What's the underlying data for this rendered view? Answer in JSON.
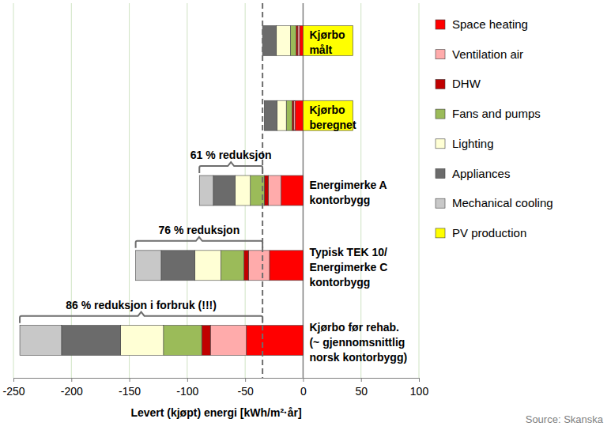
{
  "chart_data": {
    "type": "bar",
    "orientation": "horizontal",
    "stacked": true,
    "categories": [
      "Kjørbo\nmålt",
      "Kjørbo\nberegnet",
      "Energimerke A\nkontorbygg",
      "Typisk TEK 10/\nEnergimerke C\nkontorbygg",
      "Kjørbo før rehab.\n(~ gjennomsnittlig\nnorsk kontorbygg)"
    ],
    "series": [
      {
        "name": "Space heating",
        "color": "#ff0000",
        "values": [
          -3,
          -7,
          -19,
          -29,
          -49
        ]
      },
      {
        "name": "Ventilation air",
        "color": "#ffabab",
        "values": [
          -1.5,
          -1,
          -11,
          -18,
          -31
        ]
      },
      {
        "name": "DHW",
        "color": "#c00000",
        "values": [
          -1.5,
          -1.5,
          -3.5,
          -4,
          -7.5
        ]
      },
      {
        "name": "Fans and pumps",
        "color": "#9bbb59",
        "values": [
          -5,
          -5,
          -12,
          -20,
          -33
        ]
      },
      {
        "name": "Lighting",
        "color": "#ffffd5",
        "values": [
          -12,
          -8,
          -13,
          -22.5,
          -37
        ]
      },
      {
        "name": "Appliances",
        "color": "#6b6b6b",
        "values": [
          -12,
          -11,
          -19,
          -29,
          -51
        ]
      },
      {
        "name": "Mechanical cooling",
        "color": "#c8c8c8",
        "values": [
          0,
          0,
          -12,
          -22,
          -36
        ]
      },
      {
        "name": "PV production",
        "color": "#ffff00",
        "values": [
          43,
          43,
          null,
          null,
          null
        ]
      }
    ],
    "xlabel": "Levert (kjøpt) energi [kWh/m²·år]",
    "xlim": [
      -250,
      100
    ],
    "xticks": [
      -250,
      -200,
      -150,
      -100,
      -50,
      0,
      50,
      100
    ],
    "grid": true,
    "legend": "right",
    "reference_line": -35,
    "annotations": [
      {
        "text": "61 % reduksjon",
        "category": "Energimerke A\nkontorbygg"
      },
      {
        "text": "76 % reduksjon",
        "category": "Typisk TEK 10/\nEnergimerke C\nkontorbygg"
      },
      {
        "text": "86 % reduksjon i forbruk (!!!)",
        "category": "Kjørbo før rehab.\n(~ gjennomsnittlig\nnorsk kontorbygg)"
      }
    ],
    "source": "Source: Skanska"
  }
}
